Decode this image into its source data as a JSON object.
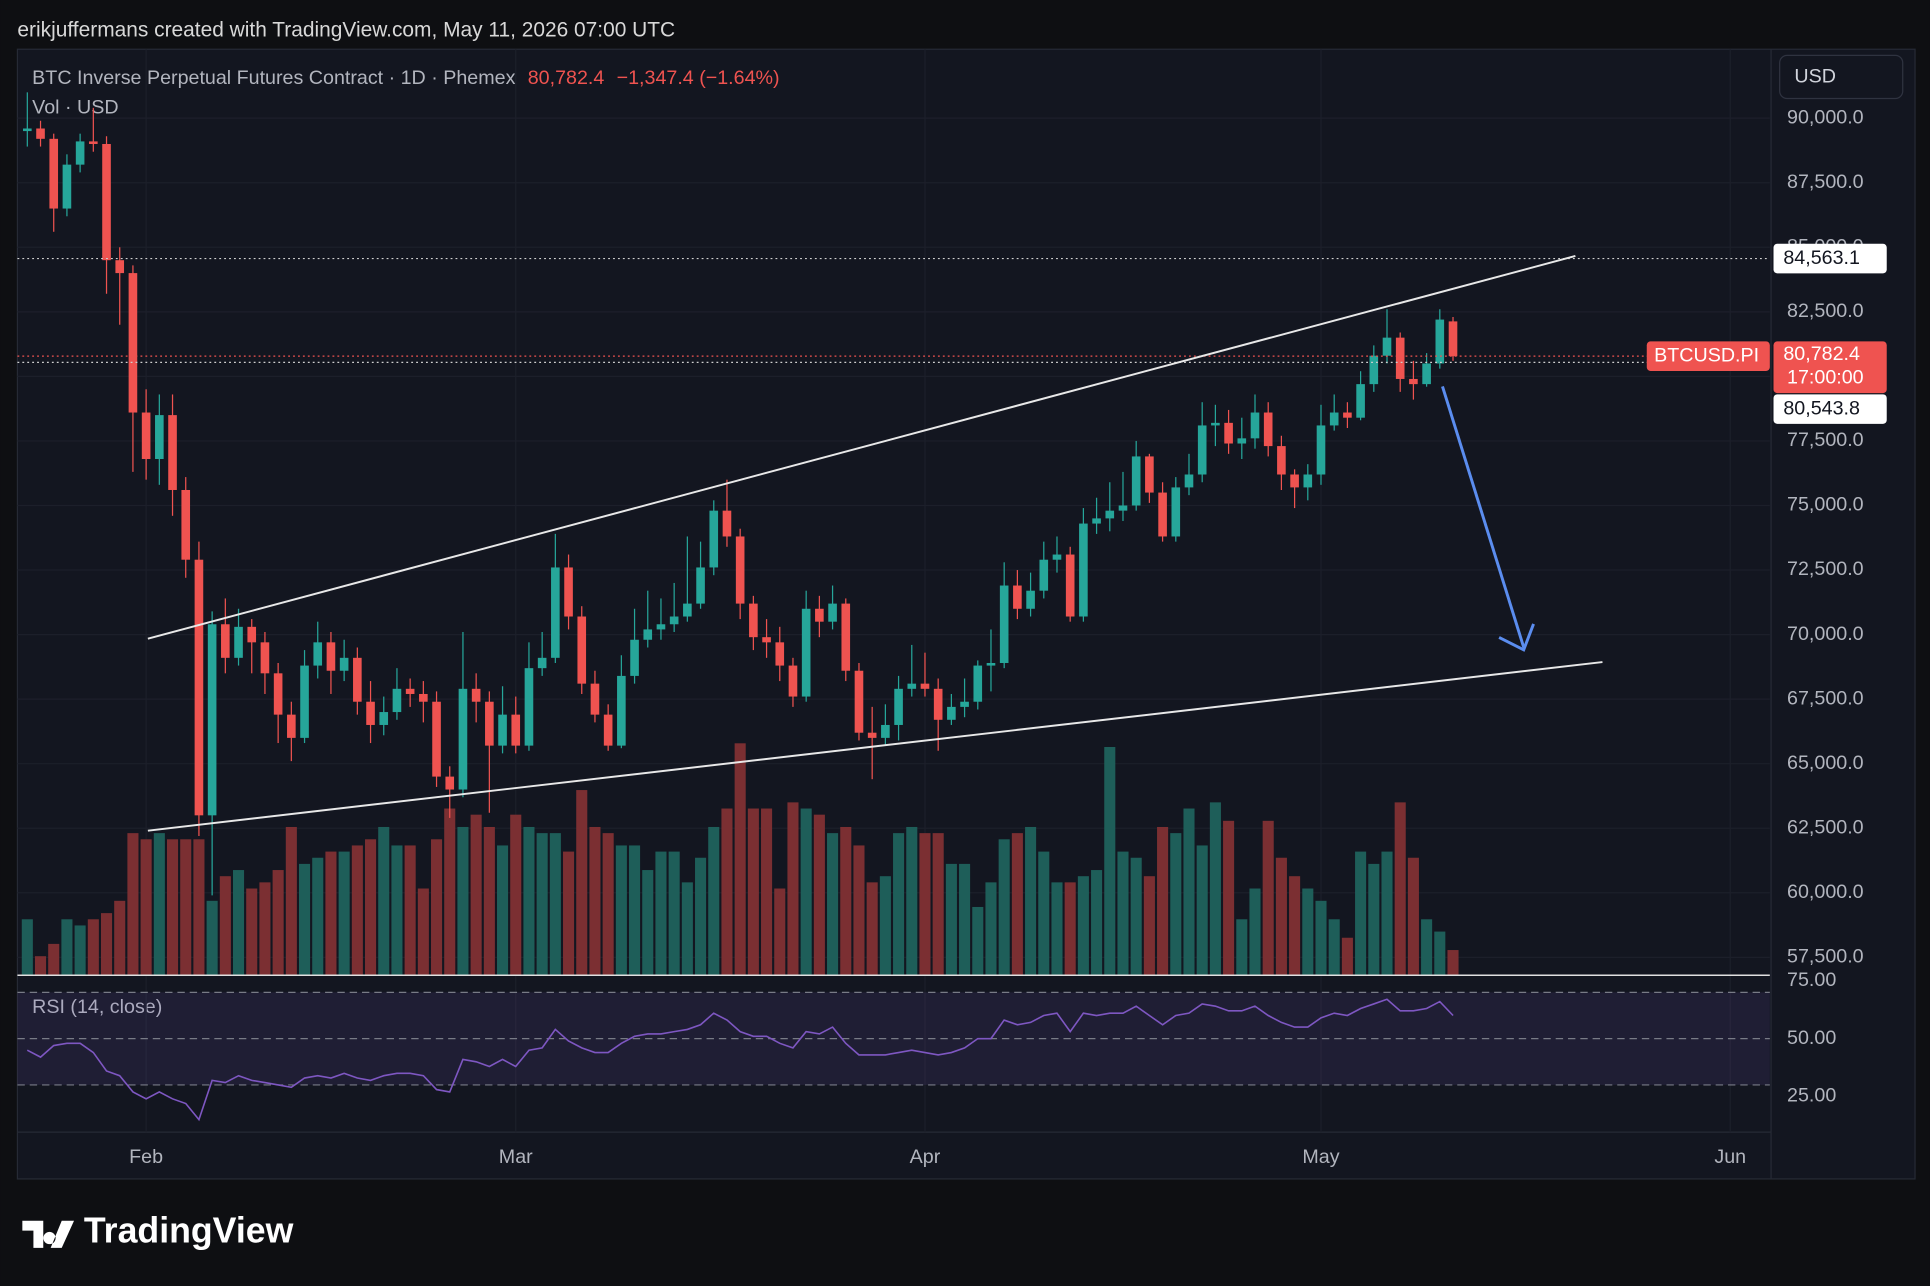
{
  "attribution": "erikjuffermans created with TradingView.com, May 11, 2026 07:00 UTC",
  "brand": "TradingView",
  "chart_data": [
    {
      "type": "candlestick",
      "title": "BTC Inverse Perpetual Futures Contract · 1D · Phemex",
      "last_label": "80,782.4",
      "change": "−1,347.4 (−1.64%)",
      "volume_label": "Vol · USD",
      "currency": "USD",
      "symbol": "BTCUSD.PI",
      "countdown": "17:00:00",
      "colors": {
        "up": "#26a69a",
        "down": "#ef5350",
        "volume_up": "#1e5e59",
        "volume_down": "#7b2f32"
      },
      "open": [
        89500,
        89600,
        89200,
        86500,
        88200,
        89100,
        89000,
        84500,
        84000,
        78600,
        76800,
        78500,
        75600,
        72900,
        63000,
        70400,
        69100,
        70300,
        69700,
        68500,
        66900,
        66000,
        68800,
        69700,
        68600,
        69100,
        67400,
        66500,
        67000,
        67900,
        67700,
        67400,
        64500,
        64000,
        67900,
        67400,
        65700,
        66900,
        65700,
        68700,
        69100,
        72600,
        70700,
        68100,
        66900,
        65700,
        68400,
        69800,
        70200,
        70400,
        70700,
        71200,
        72600,
        74800,
        73800,
        71200,
        69900,
        69700,
        68800,
        67600,
        71000,
        70500,
        71200,
        68600,
        66200,
        66000,
        66500,
        67900,
        68100,
        67900,
        66700,
        67200,
        67400,
        68800,
        68900,
        71900,
        71000,
        71700,
        72900,
        73100,
        70700,
        74300,
        74500,
        74800,
        75000,
        76900,
        75500,
        73800,
        75700,
        76200,
        78100,
        78200,
        77400,
        77600,
        78600,
        77300,
        76200,
        75700,
        76200,
        78100,
        78600,
        78400,
        79700,
        80800,
        81500,
        79900,
        79700,
        80500,
        82129.8
      ],
      "high": [
        91000,
        89900,
        89400,
        88600,
        89400,
        90400,
        89300,
        85000,
        84300,
        79500,
        79300,
        79300,
        76100,
        73600,
        70900,
        71400,
        71000,
        70600,
        70100,
        68900,
        67400,
        69400,
        70500,
        70100,
        69800,
        69500,
        68200,
        67600,
        68700,
        68300,
        68200,
        67800,
        64900,
        70100,
        68500,
        67800,
        68000,
        67600,
        69700,
        70100,
        73900,
        73100,
        71100,
        68600,
        67300,
        69200,
        71000,
        71700,
        71400,
        72000,
        73800,
        73600,
        75200,
        76000,
        74100,
        71500,
        70600,
        70300,
        69100,
        71700,
        71500,
        71900,
        71400,
        68900,
        67200,
        67300,
        68400,
        69600,
        69300,
        68300,
        67700,
        68300,
        69000,
        70200,
        72800,
        72500,
        72400,
        73600,
        73800,
        73400,
        74900,
        75300,
        75900,
        76300,
        77500,
        77000,
        75900,
        76100,
        77000,
        79000,
        78900,
        78700,
        78400,
        79300,
        79000,
        77700,
        76400,
        76600,
        78900,
        79300,
        79000,
        80200,
        81200,
        82600,
        81700,
        80600,
        80900,
        82600,
        82300
      ],
      "low": [
        88900,
        88900,
        85600,
        86200,
        87900,
        88700,
        83200,
        82000,
        76300,
        76000,
        75800,
        74600,
        72200,
        62200,
        59900,
        68500,
        68800,
        68500,
        67700,
        65800,
        65100,
        65800,
        68300,
        67700,
        68200,
        66900,
        65800,
        66100,
        66700,
        67200,
        66600,
        64100,
        62900,
        63700,
        66600,
        63100,
        65400,
        65400,
        65500,
        68400,
        68900,
        70200,
        67700,
        66600,
        65500,
        65600,
        68100,
        69500,
        69800,
        70100,
        70500,
        71000,
        72300,
        73400,
        70600,
        69400,
        69100,
        68200,
        67200,
        67400,
        69900,
        70200,
        68200,
        65900,
        64400,
        65700,
        65900,
        67600,
        67600,
        65500,
        66500,
        66800,
        67100,
        67800,
        68700,
        70600,
        70700,
        71400,
        72400,
        70500,
        70500,
        73900,
        74000,
        74400,
        74800,
        75100,
        73600,
        73600,
        75400,
        75900,
        77300,
        77000,
        76800,
        77200,
        76900,
        75600,
        74900,
        75200,
        75800,
        77900,
        78000,
        78300,
        79400,
        80500,
        79400,
        79100,
        79600,
        80300,
        80600
      ],
      "close": [
        89600,
        89200,
        86500,
        88200,
        89100,
        89000,
        84500,
        84000,
        78600,
        76800,
        78500,
        75600,
        72900,
        63000,
        70400,
        69100,
        70300,
        69700,
        68500,
        66900,
        66000,
        68800,
        69700,
        68600,
        69100,
        67400,
        66500,
        67000,
        67900,
        67700,
        67400,
        64500,
        64000,
        67900,
        67400,
        65700,
        66900,
        65700,
        68700,
        69100,
        72600,
        70700,
        68100,
        66900,
        65700,
        68400,
        69800,
        70200,
        70400,
        70700,
        71200,
        72600,
        74800,
        73800,
        71200,
        69900,
        69700,
        68800,
        67600,
        71000,
        70500,
        71200,
        68600,
        66200,
        66000,
        66500,
        67900,
        68100,
        67900,
        66700,
        67200,
        67400,
        68800,
        68900,
        71900,
        71000,
        71700,
        72900,
        73100,
        70700,
        74300,
        74500,
        74800,
        75000,
        76900,
        75500,
        73800,
        75700,
        76200,
        78100,
        78200,
        77400,
        77600,
        78600,
        77300,
        76200,
        75700,
        76200,
        78100,
        78600,
        78400,
        79700,
        80800,
        81500,
        79900,
        79700,
        80500,
        82200,
        80782.4
      ],
      "volume": [
        45,
        15,
        25,
        45,
        40,
        45,
        50,
        60,
        115,
        110,
        115,
        110,
        110,
        110,
        60,
        80,
        85,
        70,
        75,
        85,
        120,
        90,
        95,
        100,
        100,
        105,
        110,
        120,
        105,
        105,
        70,
        110,
        135,
        120,
        130,
        120,
        105,
        130,
        120,
        115,
        115,
        100,
        150,
        120,
        115,
        105,
        105,
        85,
        100,
        100,
        75,
        95,
        120,
        135,
        188,
        135,
        135,
        70,
        140,
        135,
        130,
        115,
        120,
        105,
        75,
        80,
        115,
        120,
        115,
        115,
        90,
        90,
        55,
        75,
        110,
        115,
        120,
        100,
        75,
        75,
        80,
        85,
        185,
        100,
        95,
        80,
        120,
        115,
        135,
        105,
        140,
        125,
        45,
        70,
        125,
        95,
        80,
        70,
        60,
        45,
        30,
        100,
        90,
        100,
        140,
        95,
        45,
        35,
        20
      ],
      "ylim": [
        56830,
        92670
      ],
      "yticks": [
        {
          "value": 57500,
          "label": "57,500.0"
        },
        {
          "value": 60000,
          "label": "60,000.0"
        },
        {
          "value": 62500,
          "label": "62,500.0"
        },
        {
          "value": 65000,
          "label": "65,000.0"
        },
        {
          "value": 67500,
          "label": "67,500.0"
        },
        {
          "value": 70000,
          "label": "70,000.0"
        },
        {
          "value": 72500,
          "label": "72,500.0"
        },
        {
          "value": 75000,
          "label": "75,000.0"
        },
        {
          "value": 77500,
          "label": "77,500.0"
        },
        {
          "value": 80000,
          "label": "80,000.0"
        },
        {
          "value": 82500,
          "label": "82,500.0"
        },
        {
          "value": 85000,
          "label": "85,000.0"
        },
        {
          "value": 87500,
          "label": "87,500.0"
        },
        {
          "value": 90000,
          "label": "90,000.0"
        }
      ],
      "xlim": [
        -0.75,
        132
      ],
      "xticks": [
        {
          "value": 9,
          "label": "Feb"
        },
        {
          "value": 37,
          "label": "Mar"
        },
        {
          "value": 68,
          "label": "Apr"
        },
        {
          "value": 98,
          "label": "May"
        },
        {
          "value": 129,
          "label": "Jun"
        }
      ],
      "levels": [
        {
          "value": 84563.1,
          "label": "84,563.1"
        },
        {
          "value": 80543.8,
          "label": "80,543.8"
        }
      ],
      "grid": true
    },
    {
      "type": "line",
      "title": "RSI (14, close)",
      "color": "#7e57c2",
      "values": [
        45,
        42,
        47,
        48,
        48,
        44,
        36,
        34,
        27,
        24,
        27,
        24,
        22,
        15,
        32,
        31,
        34,
        32,
        31,
        30,
        29,
        33,
        34,
        33,
        35,
        33,
        32,
        34,
        35,
        35,
        34,
        28,
        27,
        41,
        40,
        38,
        41,
        38,
        45,
        46,
        54,
        49,
        46,
        44,
        44,
        48,
        51,
        52,
        52,
        53,
        54,
        56,
        61,
        58,
        53,
        51,
        51,
        48,
        46,
        53,
        52,
        55,
        48,
        43,
        43,
        43,
        44,
        45,
        44,
        43,
        44,
        46,
        50,
        50,
        58,
        56,
        57,
        60,
        61,
        53,
        61,
        60,
        61,
        61,
        64,
        60,
        56,
        60,
        61,
        65,
        64,
        62,
        62,
        64,
        60,
        57,
        55,
        55,
        59,
        61,
        60,
        63,
        65,
        67,
        62,
        62,
        63,
        66,
        60
      ],
      "ylim": [
        9.6,
        77.1
      ],
      "yticks": [
        {
          "value": 75,
          "label": "75.00"
        },
        {
          "value": 50,
          "label": "50.00"
        },
        {
          "value": 25,
          "label": "25.00"
        }
      ],
      "levels": [
        70,
        50,
        30
      ]
    }
  ]
}
